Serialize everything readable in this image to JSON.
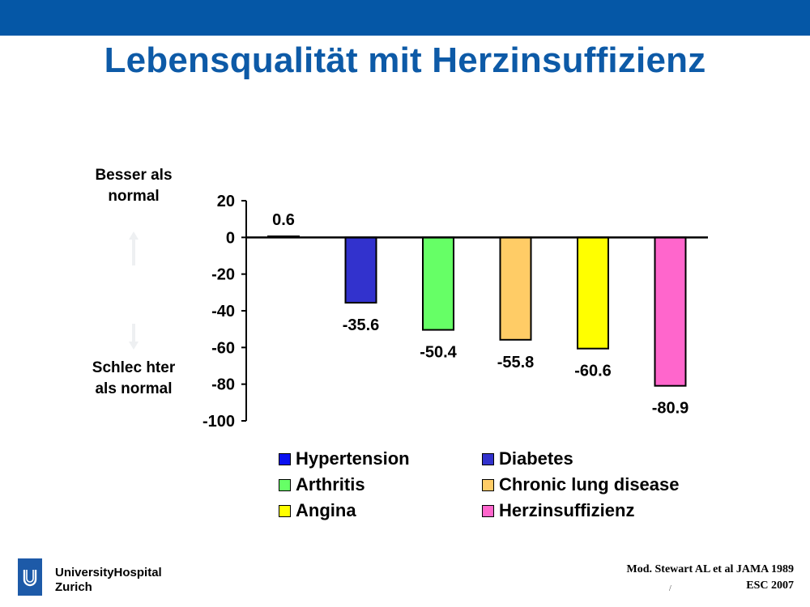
{
  "slide": {
    "title": "Lebensqualität mit Herzinsuffizienz",
    "label_better": "Besser als normal",
    "label_worse": "Schlec hter als normal",
    "logo_line1": "UniversityHospital",
    "logo_line2": "Zurich",
    "citation_line1": "Mod. Stewart AL et al JAMA 1989",
    "citation_line2": "ESC 2007",
    "page_mark": "/",
    "colors": {
      "bar_accent": "#0557a6",
      "title": "#0d5aa7"
    }
  },
  "chart_data": {
    "type": "bar",
    "categories": [
      "Hypertension",
      "Diabetes",
      "Arthritis",
      "Chronic lung disease",
      "Angina",
      "Herzinsuffizienz"
    ],
    "values": [
      0.6,
      -35.6,
      -50.4,
      -55.8,
      -60.6,
      -80.9
    ],
    "labels": [
      "0.6",
      "-35.6",
      "-50.4",
      "-55.8",
      "-60.6",
      "-80.9"
    ],
    "colors": [
      "#0a10f0",
      "#3232cd",
      "#66ff66",
      "#ffcc66",
      "#ffff00",
      "#ff66cc"
    ],
    "ylim": [
      -100,
      20
    ],
    "yticks": [
      20,
      0,
      -20,
      -40,
      -60,
      -80,
      -100
    ],
    "legend": {
      "position": "bottom",
      "order": [
        "Hypertension",
        "Diabetes",
        "Arthritis",
        "Chronic lung disease",
        "Angina",
        "Herzinsuffizienz"
      ]
    }
  }
}
